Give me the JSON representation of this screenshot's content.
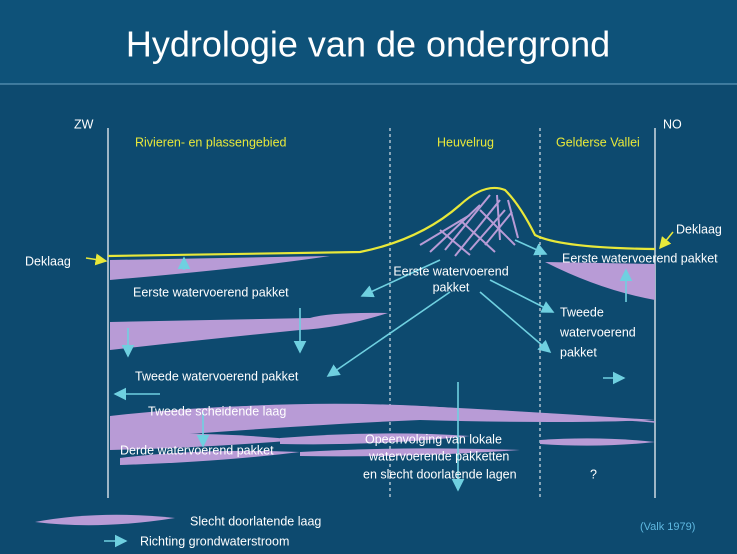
{
  "header": {
    "title": "Hydrologie van de ondergrond"
  },
  "directions": {
    "left": "ZW",
    "right": "NO"
  },
  "regions": [
    "Rivieren- en plassengebied",
    "Heuvelrug",
    "Gelderse Vallei"
  ],
  "labels": {
    "deklaag_left": "Deklaag",
    "deklaag_right": "Deklaag",
    "eerste_left": "Eerste watervoerend pakket",
    "eerste_middle": [
      "Eerste watervoerend",
      "pakket"
    ],
    "eerste_right": "Eerste watervoerend pakket",
    "tweede_right": [
      "Tweede",
      "watervoerend",
      "pakket"
    ],
    "tweede_left": "Tweede watervoerend pakket",
    "tweede_scheidend": "Tweede scheidende laag",
    "derde": "Derde watervoerend pakket",
    "opeenvolging": [
      "Opeenvolging van lokale",
      "watervoerende pakketten",
      "en slecht doorlatende lagen"
    ],
    "question": "?"
  },
  "legend": {
    "layer": "Slecht doorlatende laag",
    "flow": "Richting grondwaterstroom"
  },
  "source": "(Valk 1979)"
}
